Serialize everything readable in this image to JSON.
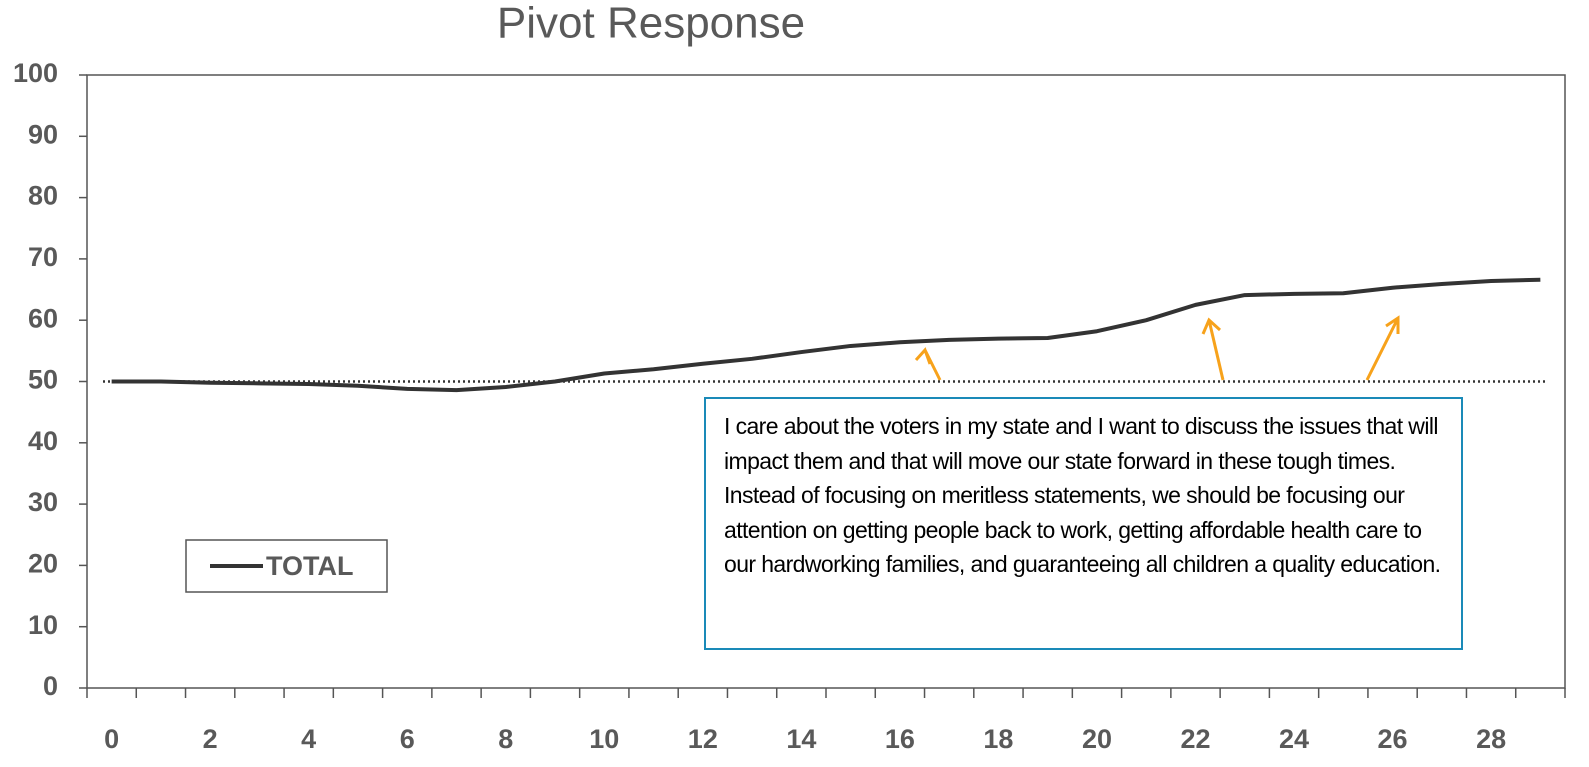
{
  "chart_data": {
    "type": "line",
    "title": "Pivot Response",
    "categories": [
      0,
      null,
      2,
      null,
      4,
      null,
      6,
      null,
      8,
      null,
      10,
      null,
      12,
      null,
      14,
      null,
      16,
      null,
      18,
      null,
      20,
      null,
      22,
      null,
      24,
      null,
      26,
      null,
      28,
      null
    ],
    "series": [
      {
        "name": "TOTAL",
        "color": "#333333",
        "values": [
          50,
          50,
          49.8,
          49.7,
          49.6,
          49.3,
          48.8,
          48.6,
          49.1,
          50,
          51.3,
          52,
          52.9,
          53.7,
          54.8,
          55.8,
          56.4,
          56.8,
          57,
          57.1,
          58.2,
          60,
          62.5,
          64.1,
          64.3,
          64.4,
          65.3,
          65.9,
          66.4,
          66.6
        ]
      }
    ],
    "reference_line": 50,
    "ylim": [
      0,
      100
    ],
    "yticks": [
      0,
      10,
      20,
      30,
      40,
      50,
      60,
      70,
      80,
      90,
      100
    ],
    "annotation": "I care about the voters in my state and I want to discuss the issues that will impact them and that will move our state forward in these tough times.  Instead of focusing on meritless statements, we should be focusing our attention on getting people back to work, getting affordable health care to our hardworking families, and guaranteeing all children a quality education."
  }
}
